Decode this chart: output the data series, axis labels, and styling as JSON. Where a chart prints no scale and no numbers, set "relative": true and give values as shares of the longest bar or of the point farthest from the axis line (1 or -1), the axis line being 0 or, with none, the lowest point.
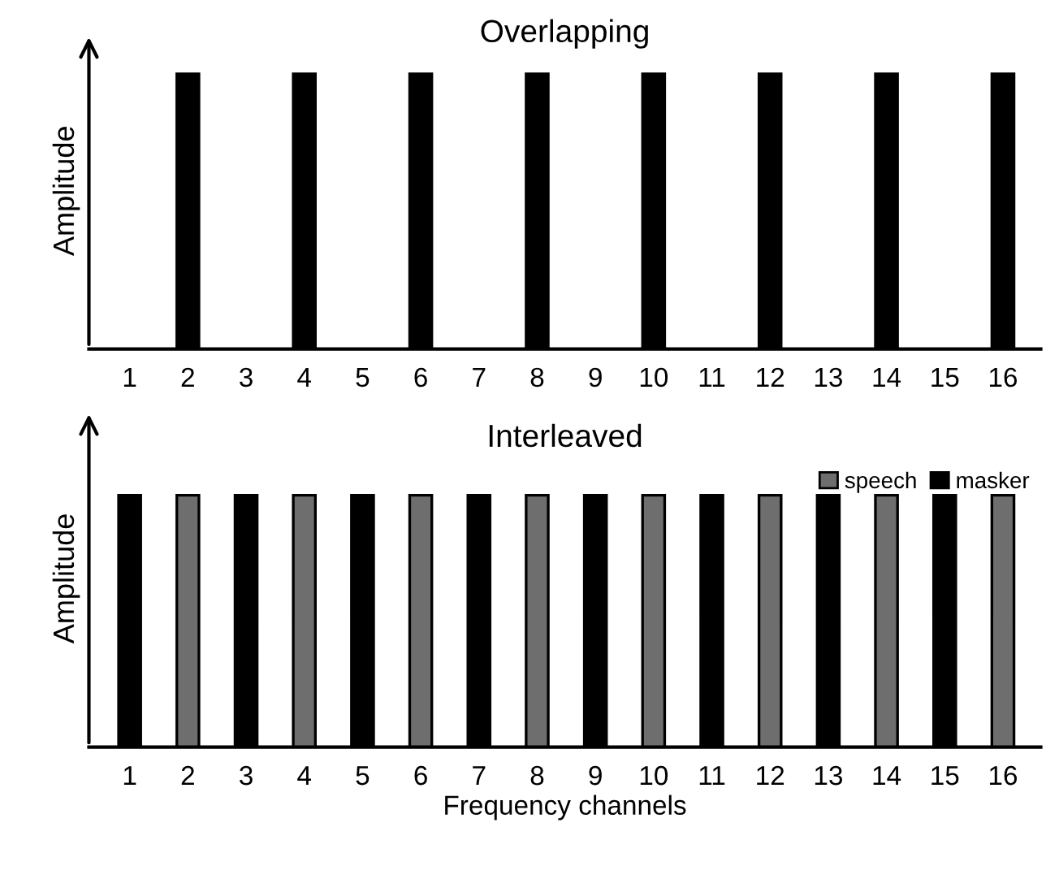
{
  "chart_data": [
    {
      "type": "bar",
      "title": "Overlapping",
      "ylabel": "Amplitude",
      "relative": true,
      "tick_labels": "x",
      "grid": false,
      "legend": false,
      "categories": [
        "1",
        "2",
        "3",
        "4",
        "5",
        "6",
        "7",
        "8",
        "9",
        "10",
        "11",
        "12",
        "13",
        "14",
        "15",
        "16"
      ],
      "series": [
        {
          "color": "#000000",
          "values": [
            null,
            1,
            null,
            1,
            null,
            1,
            null,
            1,
            null,
            1,
            null,
            1,
            null,
            1,
            null,
            1
          ]
        }
      ]
    },
    {
      "type": "bar",
      "title": "Interleaved",
      "ylabel": "Amplitude",
      "xlabel": "Frequency channels",
      "relative": true,
      "tick_labels": "x",
      "grid": false,
      "legend": "top right",
      "categories": [
        "1",
        "2",
        "3",
        "4",
        "5",
        "6",
        "7",
        "8",
        "9",
        "10",
        "11",
        "12",
        "13",
        "14",
        "15",
        "16"
      ],
      "series": [
        {
          "name": "speech",
          "color": "#6e6e6e",
          "values": [
            null,
            1,
            null,
            1,
            null,
            1,
            null,
            1,
            null,
            1,
            null,
            1,
            null,
            1,
            null,
            1
          ]
        },
        {
          "name": "masker",
          "color": "#000000",
          "values": [
            1,
            null,
            1,
            null,
            1,
            null,
            1,
            null,
            1,
            null,
            1,
            null,
            1,
            null,
            1,
            null
          ]
        }
      ]
    }
  ]
}
